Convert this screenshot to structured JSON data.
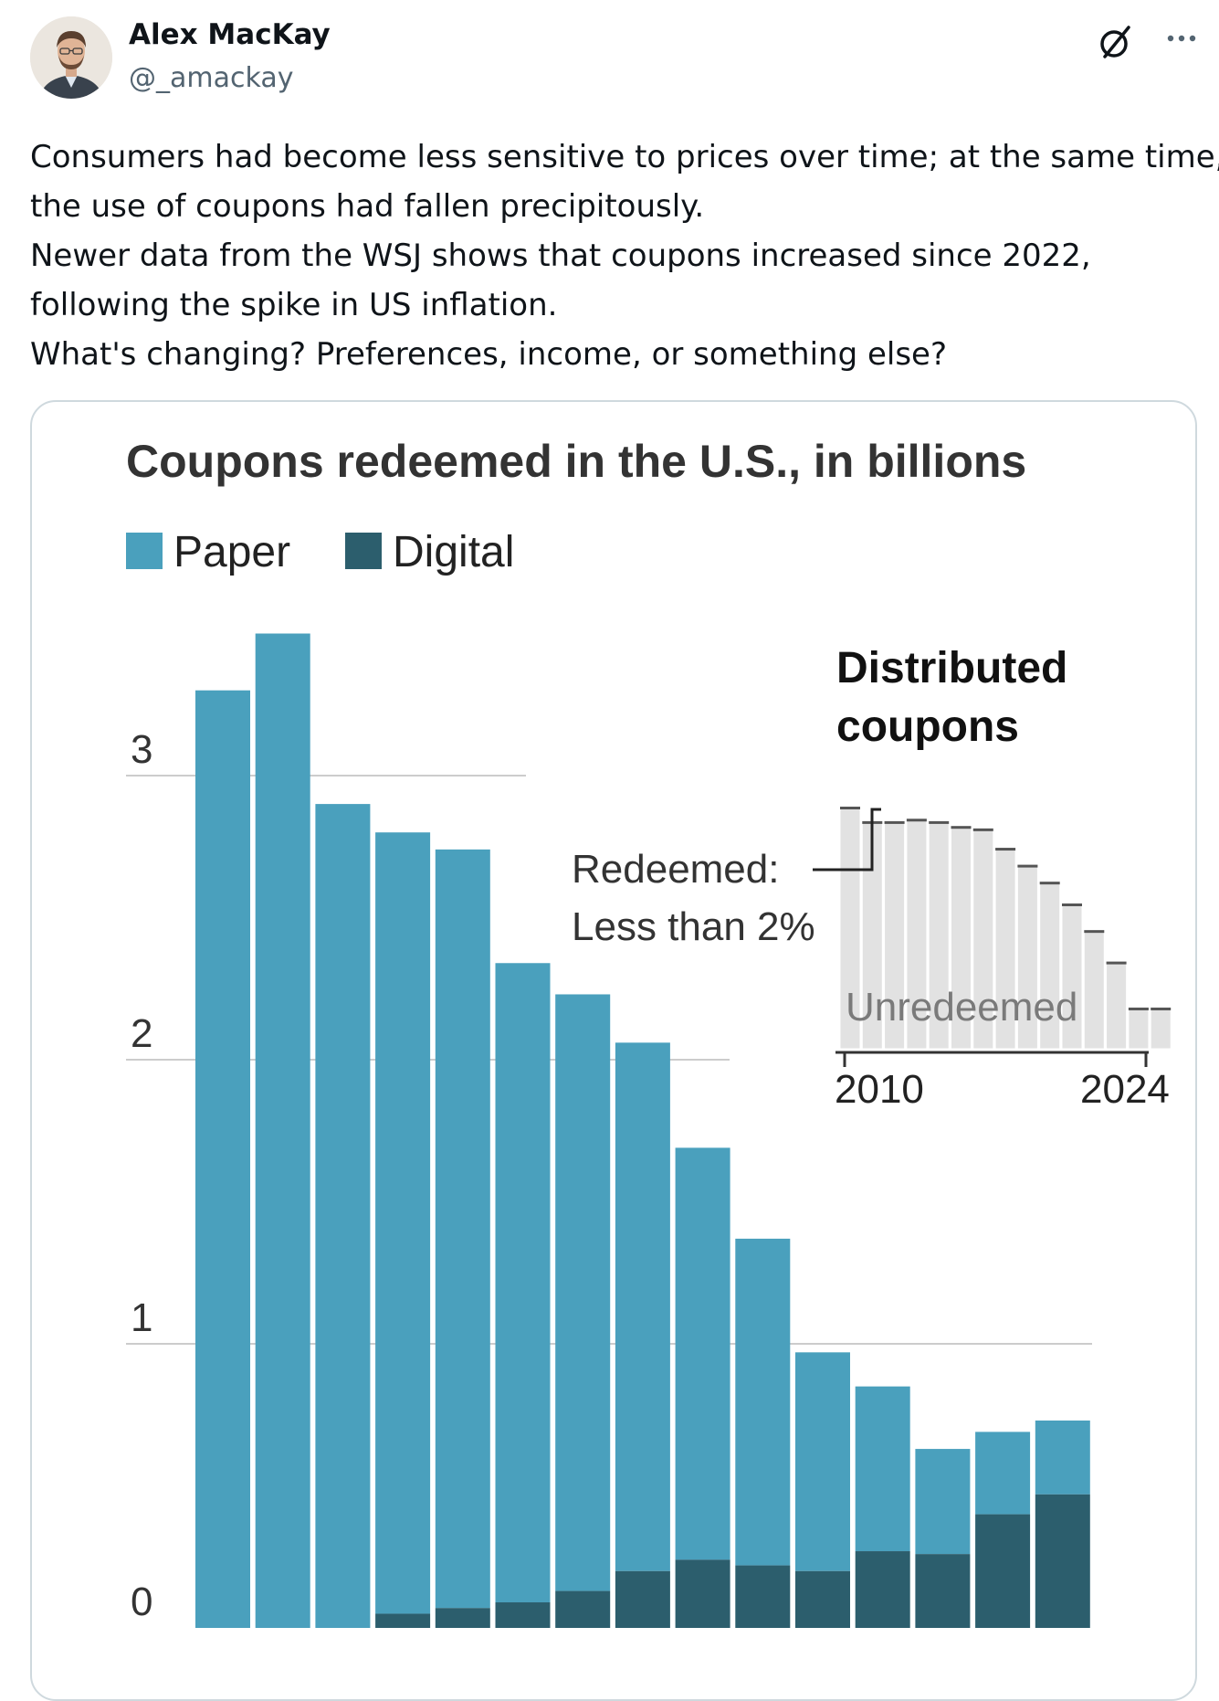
{
  "post": {
    "author": {
      "name": "Alex MacKay",
      "handle": "@_amackay"
    },
    "icons": {
      "grok": "grok-icon",
      "more": "more-icon"
    },
    "text_lines": [
      "Consumers had become less sensitive to prices over time; at the same time,",
      "the use of coupons had fallen precipitously.",
      "Newer data from the WSJ shows that coupons increased since 2022,",
      "following the spike in US inflation.",
      "What's changing? Preferences, income, or something else?"
    ]
  },
  "chart_data": [
    {
      "type": "bar",
      "stacked": true,
      "title": "Coupons redeemed in the U.S., in billions",
      "legend": [
        "Paper",
        "Digital"
      ],
      "legend_position": "top-left",
      "ylim": [
        0,
        3.5
      ],
      "yticks": [
        0,
        1,
        2,
        3
      ],
      "ylabel": "",
      "xlabel": "",
      "colors": {
        "Paper": "#4aa0bd",
        "Digital": "#2c5e6d"
      },
      "series": [
        {
          "name": "Digital",
          "values": [
            0,
            0,
            0,
            0.05,
            0.07,
            0.09,
            0.13,
            0.2,
            0.24,
            0.22,
            0.2,
            0.27,
            0.26,
            0.4,
            0.47
          ]
        },
        {
          "name": "Paper",
          "values": [
            3.3,
            3.5,
            2.9,
            2.75,
            2.67,
            2.25,
            2.1,
            1.86,
            1.45,
            1.15,
            0.77,
            0.58,
            0.37,
            0.29,
            0.26
          ]
        }
      ]
    },
    {
      "type": "bar",
      "title": "Distributed coupons",
      "x_range": [
        "2010",
        "2024"
      ],
      "annotations": [
        "Redeemed:",
        "Less than 2%",
        "Unredeemed"
      ],
      "values_relative": [
        1.0,
        0.94,
        0.94,
        0.95,
        0.94,
        0.92,
        0.91,
        0.83,
        0.76,
        0.69,
        0.6,
        0.49,
        0.36,
        0.17,
        0.17
      ]
    }
  ]
}
